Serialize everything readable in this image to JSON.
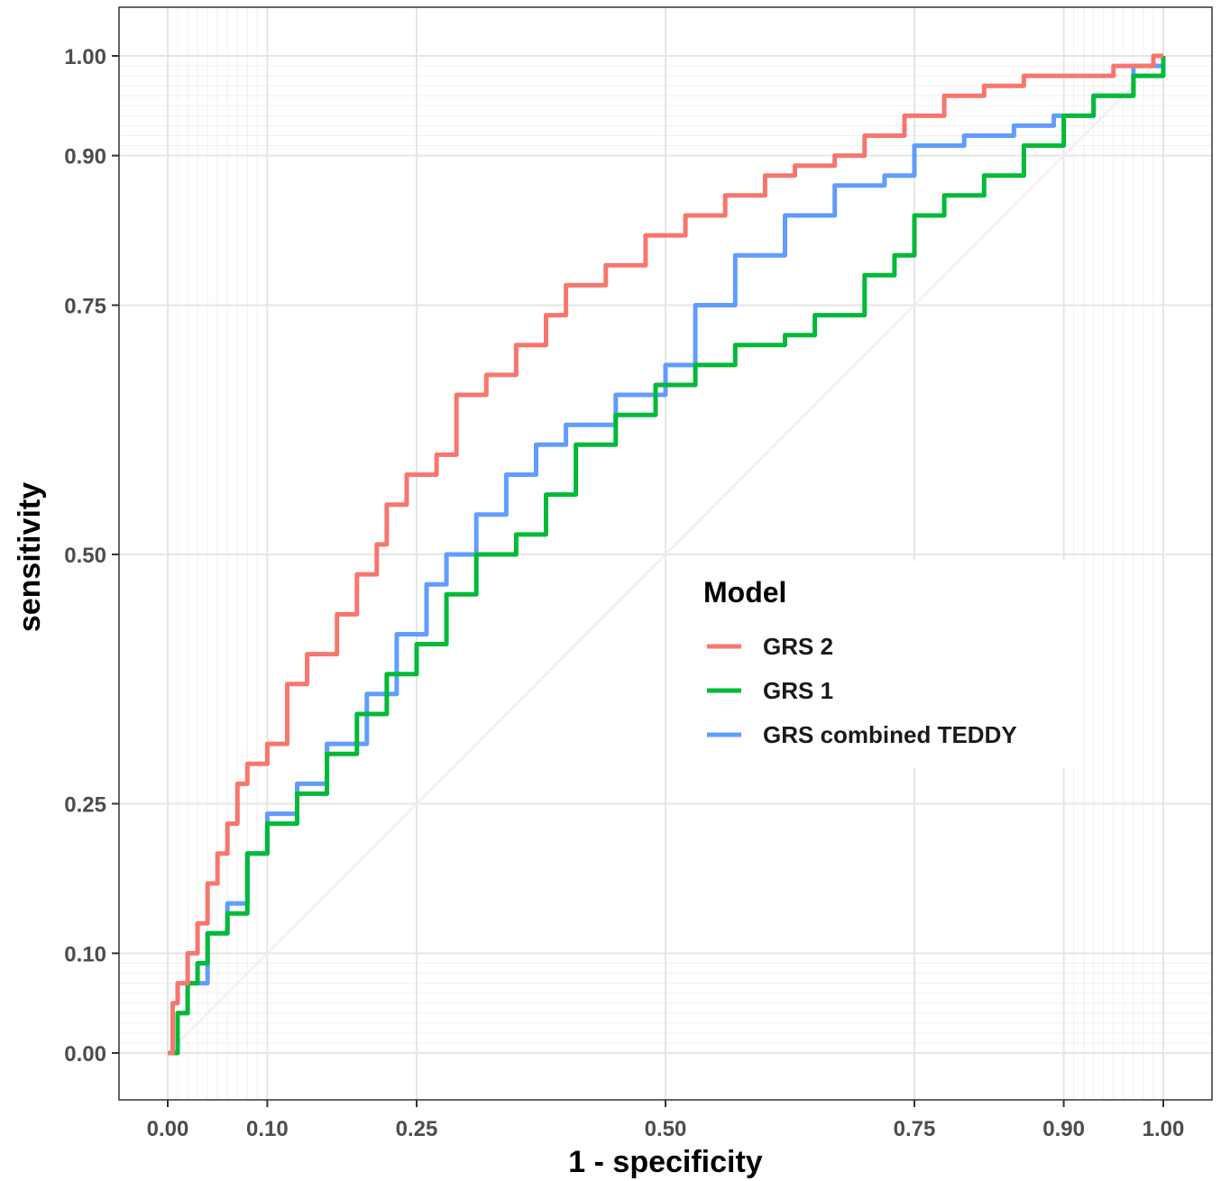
{
  "chart_data": {
    "type": "line",
    "xlabel": "1 - specificity",
    "ylabel": "sensitivity",
    "xlim": [
      0,
      1
    ],
    "ylim": [
      0,
      1
    ],
    "x_ticks": [
      0.0,
      0.1,
      0.25,
      0.5,
      0.75,
      0.9,
      1.0
    ],
    "x_tick_labels": [
      "0.00",
      "0.10",
      "0.25",
      "0.50",
      "0.75",
      "0.90",
      "1.00"
    ],
    "y_ticks": [
      0.0,
      0.1,
      0.25,
      0.5,
      0.75,
      0.9,
      1.0
    ],
    "y_tick_labels": [
      "0.00",
      "0.10",
      "0.25",
      "0.50",
      "0.75",
      "0.90",
      "1.00"
    ],
    "grid": true,
    "legend": {
      "title": "Model",
      "position": "center-right"
    },
    "series": [
      {
        "name": "GRS 2",
        "color": "#f8766d",
        "points": [
          [
            0,
            0
          ],
          [
            0.005,
            0.05
          ],
          [
            0.01,
            0.07
          ],
          [
            0.02,
            0.1
          ],
          [
            0.03,
            0.13
          ],
          [
            0.04,
            0.17
          ],
          [
            0.05,
            0.2
          ],
          [
            0.06,
            0.23
          ],
          [
            0.07,
            0.27
          ],
          [
            0.08,
            0.29
          ],
          [
            0.1,
            0.31
          ],
          [
            0.12,
            0.37
          ],
          [
            0.14,
            0.4
          ],
          [
            0.17,
            0.44
          ],
          [
            0.19,
            0.48
          ],
          [
            0.21,
            0.51
          ],
          [
            0.22,
            0.55
          ],
          [
            0.24,
            0.58
          ],
          [
            0.27,
            0.6
          ],
          [
            0.29,
            0.66
          ],
          [
            0.32,
            0.68
          ],
          [
            0.35,
            0.71
          ],
          [
            0.38,
            0.74
          ],
          [
            0.4,
            0.77
          ],
          [
            0.44,
            0.79
          ],
          [
            0.48,
            0.82
          ],
          [
            0.52,
            0.84
          ],
          [
            0.56,
            0.86
          ],
          [
            0.6,
            0.88
          ],
          [
            0.63,
            0.89
          ],
          [
            0.67,
            0.9
          ],
          [
            0.7,
            0.92
          ],
          [
            0.74,
            0.94
          ],
          [
            0.78,
            0.96
          ],
          [
            0.82,
            0.97
          ],
          [
            0.86,
            0.98
          ],
          [
            0.9,
            0.98
          ],
          [
            0.95,
            0.99
          ],
          [
            0.99,
            1.0
          ],
          [
            1.0,
            1.0
          ]
        ]
      },
      {
        "name": "GRS 1",
        "color": "#00ba38",
        "points": [
          [
            0,
            0
          ],
          [
            0.01,
            0.04
          ],
          [
            0.02,
            0.07
          ],
          [
            0.03,
            0.09
          ],
          [
            0.04,
            0.12
          ],
          [
            0.06,
            0.14
          ],
          [
            0.08,
            0.2
          ],
          [
            0.1,
            0.23
          ],
          [
            0.13,
            0.26
          ],
          [
            0.16,
            0.3
          ],
          [
            0.19,
            0.34
          ],
          [
            0.22,
            0.38
          ],
          [
            0.25,
            0.41
          ],
          [
            0.28,
            0.46
          ],
          [
            0.31,
            0.5
          ],
          [
            0.35,
            0.52
          ],
          [
            0.38,
            0.56
          ],
          [
            0.41,
            0.61
          ],
          [
            0.45,
            0.64
          ],
          [
            0.49,
            0.67
          ],
          [
            0.53,
            0.69
          ],
          [
            0.57,
            0.71
          ],
          [
            0.62,
            0.72
          ],
          [
            0.65,
            0.74
          ],
          [
            0.7,
            0.78
          ],
          [
            0.73,
            0.8
          ],
          [
            0.75,
            0.84
          ],
          [
            0.78,
            0.86
          ],
          [
            0.82,
            0.88
          ],
          [
            0.86,
            0.91
          ],
          [
            0.9,
            0.94
          ],
          [
            0.93,
            0.96
          ],
          [
            0.97,
            0.98
          ],
          [
            1.0,
            1.0
          ]
        ]
      },
      {
        "name": "GRS combined TEDDY",
        "color": "#619cff",
        "points": [
          [
            0,
            0
          ],
          [
            0.01,
            0.04
          ],
          [
            0.02,
            0.07
          ],
          [
            0.04,
            0.12
          ],
          [
            0.06,
            0.15
          ],
          [
            0.08,
            0.2
          ],
          [
            0.1,
            0.24
          ],
          [
            0.13,
            0.27
          ],
          [
            0.16,
            0.31
          ],
          [
            0.2,
            0.36
          ],
          [
            0.23,
            0.42
          ],
          [
            0.26,
            0.47
          ],
          [
            0.28,
            0.5
          ],
          [
            0.31,
            0.54
          ],
          [
            0.34,
            0.58
          ],
          [
            0.37,
            0.61
          ],
          [
            0.4,
            0.63
          ],
          [
            0.45,
            0.66
          ],
          [
            0.5,
            0.69
          ],
          [
            0.53,
            0.75
          ],
          [
            0.57,
            0.8
          ],
          [
            0.62,
            0.84
          ],
          [
            0.67,
            0.87
          ],
          [
            0.72,
            0.88
          ],
          [
            0.75,
            0.91
          ],
          [
            0.8,
            0.92
          ],
          [
            0.85,
            0.93
          ],
          [
            0.89,
            0.94
          ],
          [
            0.93,
            0.96
          ],
          [
            0.97,
            0.99
          ],
          [
            1.0,
            1.0
          ]
        ]
      }
    ]
  }
}
